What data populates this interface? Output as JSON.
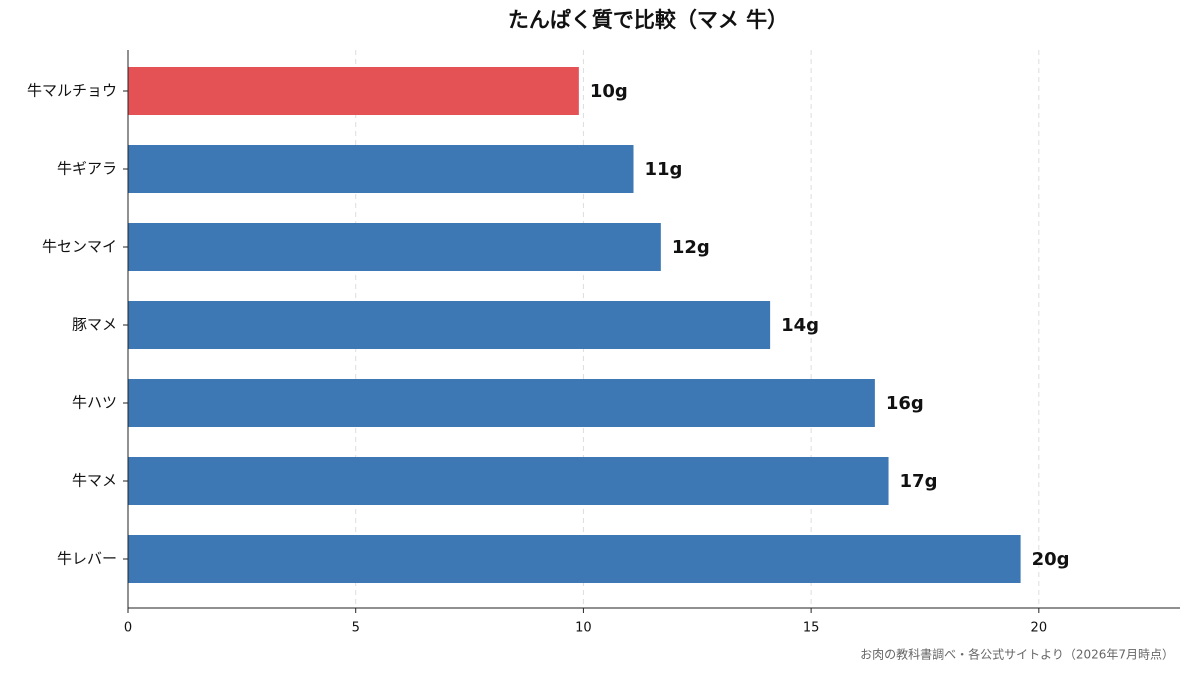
{
  "chart_data": {
    "type": "barh",
    "title": "たんぱく質で比較（マメ 牛）",
    "categories": [
      "牛マルチョウ",
      "牛ギアラ",
      "牛センマイ",
      "豚マメ",
      "牛ハツ",
      "牛マメ",
      "牛レバー"
    ],
    "values": [
      9.9,
      11.1,
      11.7,
      14.1,
      16.4,
      16.7,
      19.6
    ],
    "value_labels": [
      "10g",
      "11g",
      "12g",
      "14g",
      "16g",
      "17g",
      "20g"
    ],
    "colors": [
      "#e45256",
      "#3d78b4",
      "#3d78b4",
      "#3d78b4",
      "#3d78b4",
      "#3d78b4",
      "#3d78b4"
    ],
    "xlim": [
      0,
      23.1
    ],
    "xticks": [
      0,
      5,
      10,
      15,
      20
    ],
    "grid": true,
    "source": "お肉の教科書調べ・各公式サイトより（2026年7月時点）"
  }
}
